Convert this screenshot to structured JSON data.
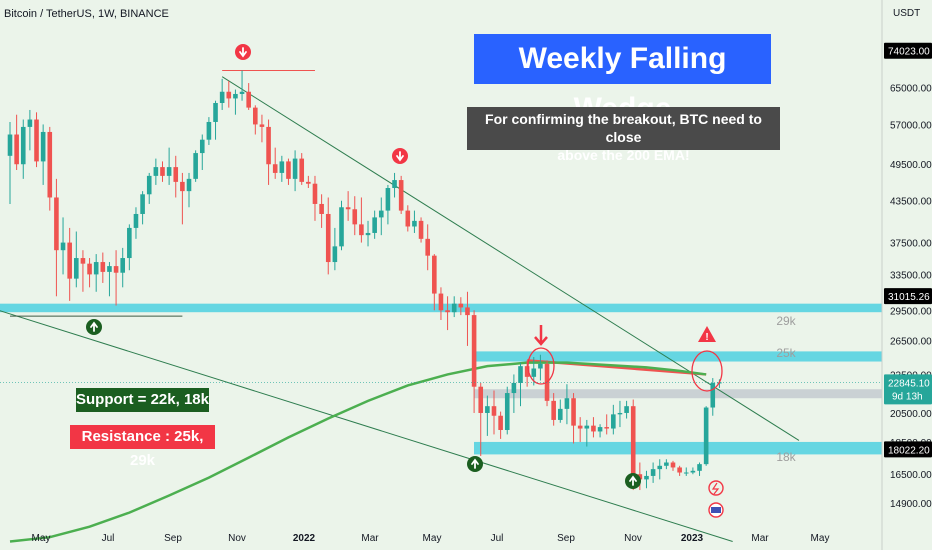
{
  "header": {
    "symbol_line": "Bitcoin / TetherUS, 1W, BINANCE"
  },
  "annotations": {
    "title": "Weekly Falling Wedge",
    "note": "For confirming the breakout, BTC need to close above the 200 EMA!",
    "note_line1": "For confirming the breakout, BTC need to close",
    "note_line2": "above the 200 EMA!",
    "support": "Support = 22k, 18k",
    "resistance": "Resistance : 25k, 29k",
    "zone_labels": [
      "29k",
      "25k",
      "18k"
    ]
  },
  "colors": {
    "background": "#ebf4ea",
    "up_candle": "#26a69a",
    "down_candle": "#ef5350",
    "ema": "#4caf50",
    "zone": "#4dd0e1",
    "title_bg": "#2962ff",
    "note_bg": "#4a4a4a",
    "support_bg": "#1b5e20",
    "resistance_bg": "#f23645"
  },
  "chart_data": {
    "type": "candlestick",
    "title": "Weekly Falling Wedge",
    "xlabel": "",
    "ylabel": "USDT",
    "y_scale": "log",
    "ylim": [
      13000,
      80000
    ],
    "x_ticks": [
      "May",
      "Jul",
      "Sep",
      "Nov",
      "2022",
      "Mar",
      "May",
      "Jul",
      "Sep",
      "Nov",
      "2023",
      "Mar",
      "May"
    ],
    "y_ticks": [
      74023,
      65000,
      57000,
      49500,
      43500,
      37500,
      33500,
      29500,
      26500,
      23500,
      20500,
      18500,
      16500,
      14900
    ],
    "price_labels": [
      {
        "label": "74023.00",
        "value": 74023,
        "kind": "high"
      },
      {
        "label": "31015.26",
        "value": 31015.26,
        "kind": "zone"
      },
      {
        "label": "22845.10",
        "value": 22845.1,
        "kind": "last"
      },
      {
        "label": "18022.20",
        "value": 18022.2,
        "kind": "zone"
      }
    ],
    "countdown": "9d 13h",
    "zones": [
      {
        "label": "29k",
        "low": 29300,
        "high": 30200
      },
      {
        "label": "25k",
        "low": 24600,
        "high": 25500
      },
      {
        "label": "22k",
        "low": 21600,
        "high": 22300
      },
      {
        "label": "18k",
        "low": 17700,
        "high": 18500
      }
    ],
    "ohlc": [
      [
        51000,
        57500,
        43000,
        55000
      ],
      [
        55000,
        59000,
        48500,
        49500
      ],
      [
        49500,
        58000,
        47000,
        56500
      ],
      [
        56500,
        60000,
        52000,
        58000
      ],
      [
        58000,
        59500,
        49000,
        50000
      ],
      [
        50000,
        57000,
        46000,
        55500
      ],
      [
        55500,
        56500,
        42000,
        44000
      ],
      [
        44000,
        47000,
        31000,
        36500
      ],
      [
        36500,
        41000,
        33500,
        37500
      ],
      [
        37500,
        39500,
        30500,
        33000
      ],
      [
        33000,
        39000,
        32000,
        35500
      ],
      [
        35500,
        36500,
        31500,
        34800
      ],
      [
        34800,
        35500,
        32000,
        33500
      ],
      [
        33500,
        36000,
        31500,
        35000
      ],
      [
        35000,
        36200,
        32500,
        33800
      ],
      [
        33800,
        35000,
        31000,
        34500
      ],
      [
        34500,
        36500,
        30000,
        33700
      ],
      [
        33700,
        36800,
        32000,
        35500
      ],
      [
        35500,
        40000,
        34000,
        39500
      ],
      [
        39500,
        42500,
        38000,
        41500
      ],
      [
        41500,
        45000,
        40000,
        44500
      ],
      [
        44500,
        48000,
        43000,
        47500
      ],
      [
        47500,
        50500,
        46000,
        49000
      ],
      [
        49000,
        50000,
        46500,
        47500
      ],
      [
        47500,
        52500,
        46000,
        49000
      ],
      [
        49000,
        51000,
        44000,
        46500
      ],
      [
        46500,
        48000,
        40000,
        45000
      ],
      [
        45000,
        48000,
        42500,
        47000
      ],
      [
        47000,
        52000,
        46500,
        51500
      ],
      [
        51500,
        55000,
        48500,
        54000
      ],
      [
        54000,
        58500,
        53000,
        57500
      ],
      [
        57500,
        62000,
        54000,
        61500
      ],
      [
        61500,
        67000,
        60000,
        64000
      ],
      [
        64000,
        66500,
        60500,
        62500
      ],
      [
        62500,
        64500,
        59000,
        63500
      ],
      [
        63500,
        69000,
        62000,
        64000
      ],
      [
        64000,
        66000,
        60000,
        60500
      ],
      [
        60500,
        61000,
        55000,
        57000
      ],
      [
        57000,
        59000,
        53500,
        56500
      ],
      [
        56500,
        58000,
        46000,
        49500
      ],
      [
        49500,
        52500,
        47000,
        48000
      ],
      [
        48000,
        51000,
        46500,
        50000
      ],
      [
        50000,
        50500,
        46000,
        47000
      ],
      [
        47000,
        52000,
        45000,
        50500
      ],
      [
        50500,
        51500,
        46000,
        46500
      ],
      [
        46500,
        47500,
        45500,
        46200
      ],
      [
        46200,
        47500,
        40500,
        43000
      ],
      [
        43000,
        44500,
        39500,
        41500
      ],
      [
        41500,
        44000,
        33500,
        35000
      ],
      [
        35000,
        39500,
        34000,
        37000
      ],
      [
        37000,
        43500,
        36500,
        42500
      ],
      [
        42500,
        45000,
        40500,
        42200
      ],
      [
        42200,
        44200,
        38500,
        40000
      ],
      [
        40000,
        44000,
        37500,
        38500
      ],
      [
        38500,
        40500,
        37000,
        38800
      ],
      [
        38800,
        42000,
        38000,
        41000
      ],
      [
        41000,
        44000,
        38500,
        42000
      ],
      [
        42000,
        46000,
        40000,
        45500
      ],
      [
        45500,
        48000,
        44000,
        46800
      ],
      [
        46800,
        47500,
        41500,
        42000
      ],
      [
        42000,
        42800,
        39000,
        39700
      ],
      [
        39700,
        42000,
        38800,
        40500
      ],
      [
        40500,
        41000,
        37500,
        38000
      ],
      [
        38000,
        40000,
        34000,
        35800
      ],
      [
        35800,
        36000,
        29500,
        31300
      ],
      [
        31300,
        32000,
        28500,
        29500
      ],
      [
        29500,
        31000,
        27500,
        29300
      ],
      [
        29300,
        31000,
        28800,
        30200
      ],
      [
        30200,
        30900,
        29000,
        29800
      ],
      [
        29800,
        31500,
        26000,
        29000
      ],
      [
        29000,
        29500,
        20500,
        22500
      ],
      [
        22500,
        22800,
        17600,
        20500
      ],
      [
        20500,
        21800,
        18900,
        21000
      ],
      [
        21000,
        22200,
        19000,
        20300
      ],
      [
        20300,
        20600,
        18700,
        19300
      ],
      [
        19300,
        22500,
        19000,
        22000
      ],
      [
        22000,
        23500,
        20500,
        22800
      ],
      [
        22800,
        24500,
        21000,
        24200
      ],
      [
        24200,
        24700,
        22500,
        23300
      ],
      [
        23300,
        25000,
        22600,
        24000
      ],
      [
        24000,
        25200,
        23000,
        24400
      ],
      [
        24400,
        24700,
        21000,
        21400
      ],
      [
        21400,
        22000,
        19600,
        20000
      ],
      [
        20000,
        21500,
        19800,
        20800
      ],
      [
        20800,
        22700,
        19700,
        21600
      ],
      [
        21600,
        22000,
        18400,
        19600
      ],
      [
        19600,
        20200,
        18500,
        19400
      ],
      [
        19400,
        20000,
        18200,
        19600
      ],
      [
        19600,
        20200,
        18800,
        19200
      ],
      [
        19200,
        19700,
        18800,
        19500
      ],
      [
        19500,
        20400,
        19000,
        19400
      ],
      [
        19400,
        21100,
        19000,
        20400
      ],
      [
        20400,
        21400,
        19500,
        20500
      ],
      [
        20500,
        21400,
        20100,
        21000
      ],
      [
        21000,
        21500,
        15600,
        16500
      ],
      [
        16500,
        17200,
        15600,
        16200
      ],
      [
        16200,
        16700,
        15700,
        16400
      ],
      [
        16400,
        17200,
        16000,
        16800
      ],
      [
        16800,
        17400,
        16200,
        17000
      ],
      [
        17000,
        17400,
        16800,
        17200
      ],
      [
        17200,
        17300,
        16700,
        16900
      ],
      [
        16900,
        17000,
        16400,
        16600
      ],
      [
        16600,
        16900,
        16400,
        16600
      ],
      [
        16600,
        16900,
        16500,
        16700
      ],
      [
        16700,
        17200,
        16400,
        17100
      ],
      [
        17100,
        21000,
        17000,
        20900
      ],
      [
        20900,
        23200,
        20300,
        22800
      ],
      [
        22800,
        23100,
        22400,
        22845.1
      ]
    ],
    "ema_200": [
      [
        0,
        13000
      ],
      [
        6,
        13200
      ],
      [
        12,
        13700
      ],
      [
        18,
        14400
      ],
      [
        24,
        15300
      ],
      [
        30,
        16300
      ],
      [
        36,
        17500
      ],
      [
        42,
        18800
      ],
      [
        48,
        20100
      ],
      [
        54,
        21400
      ],
      [
        60,
        22600
      ],
      [
        66,
        23500
      ],
      [
        72,
        24200
      ],
      [
        78,
        24500
      ],
      [
        84,
        24500
      ],
      [
        90,
        24300
      ],
      [
        96,
        24100
      ],
      [
        101,
        23800
      ],
      [
        105,
        23500
      ]
    ],
    "trendlines": [
      {
        "name": "wedge-upper",
        "from": [
          32,
          67500
        ],
        "to": [
          119,
          18600
        ]
      },
      {
        "name": "wedge-lower",
        "from": [
          -4,
          30000
        ],
        "to": [
          109,
          13000
        ]
      },
      {
        "name": "resistance-highlight",
        "from": [
          78,
          24700
        ],
        "to": [
          105,
          23500
        ]
      },
      {
        "name": "ath-marker",
        "from": [
          32,
          69000
        ],
        "to": [
          46,
          69000
        ]
      },
      {
        "name": "support-marker",
        "from": [
          0,
          28900
        ],
        "to": [
          26,
          28900
        ]
      }
    ]
  }
}
